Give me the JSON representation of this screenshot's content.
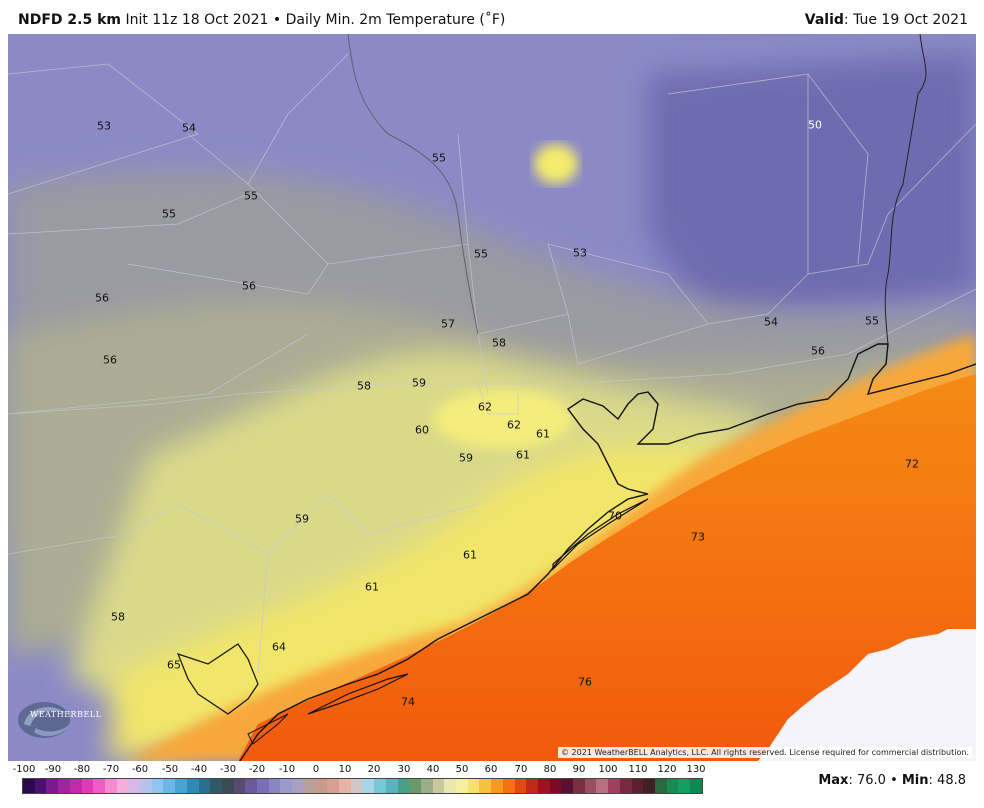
{
  "header": {
    "model": "NDFD 2.5 km",
    "init": "Init 11z 18 Oct 2021",
    "bullet": "•",
    "product": "Daily Min. 2m Temperature (˚F)",
    "valid_label": "Valid",
    "valid_date": ": Tue 19 Oct 2021"
  },
  "map": {
    "labels": [
      "53",
      "54",
      "55",
      "55",
      "55",
      "56",
      "55",
      "53",
      "50",
      "56",
      "56",
      "57",
      "58",
      "54",
      "55",
      "56",
      "58",
      "59",
      "62",
      "62",
      "61",
      "60",
      "61",
      "59",
      "72",
      "59",
      "70",
      "73",
      "61",
      "61",
      "58",
      "64",
      "65",
      "76",
      "74"
    ],
    "copyright": "© 2021 WeatherBELL Analytics, LLC. All rights reserved. License required for commercial distribution.",
    "logo_text": "WEATHERBELL"
  },
  "colorbar": {
    "ticks": [
      "-100",
      "-90",
      "-80",
      "-70",
      "-60",
      "-50",
      "-40",
      "-30",
      "-20",
      "-10",
      "0",
      "10",
      "20",
      "30",
      "40",
      "50",
      "60",
      "70",
      "80",
      "90",
      "100",
      "110",
      "120",
      "130"
    ],
    "colors": [
      "#2a0a4a",
      "#4b0f6e",
      "#7a1a8e",
      "#a0249e",
      "#c42aa8",
      "#e03ab6",
      "#ee5cc4",
      "#f48bd0",
      "#f3aedc",
      "#d8b7e6",
      "#b6c3ee",
      "#8ec6f0",
      "#6bb8e6",
      "#4aa3d2",
      "#2f8ab6",
      "#2a6f8e",
      "#2e5a66",
      "#3c4a56",
      "#5a4a70",
      "#6b5a9a",
      "#7a6fb4",
      "#8a86c4",
      "#9a9acc",
      "#a8a0c0",
      "#b8a09a",
      "#c89a8a",
      "#d8a090",
      "#e6b4a4",
      "#d2c7c8",
      "#a7d5e6",
      "#78c6d6",
      "#58b4c0",
      "#48a08a",
      "#6a9a6a",
      "#9aae88",
      "#c8c89c",
      "#e8e8b0",
      "#f4f0a0",
      "#f6e070",
      "#f8c040",
      "#f89a20",
      "#f47010",
      "#e04a10",
      "#c02818",
      "#a01020",
      "#7a0a28",
      "#5a1030",
      "#783040",
      "#985060",
      "#b87080",
      "#a04060",
      "#7a2a40",
      "#5a2030",
      "#402020",
      "#2a6a40",
      "#1a8a50",
      "#10a060",
      "#0a8a50"
    ]
  },
  "footer": {
    "max_label": "Max",
    "max_value": ": 76.0",
    "bullet": "•",
    "min_label": "Min",
    "min_value": ": 48.8"
  }
}
